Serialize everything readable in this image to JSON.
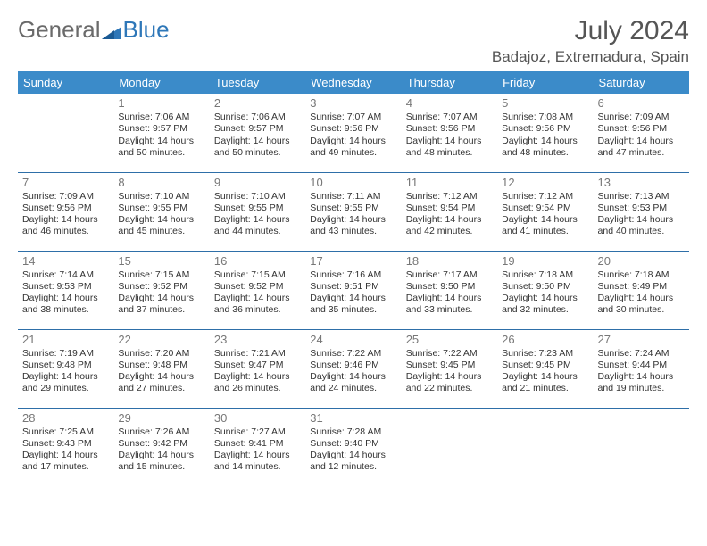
{
  "logo": {
    "part1": "General",
    "part2": "Blue"
  },
  "title": "July 2024",
  "location": "Badajoz, Extremadura, Spain",
  "colors": {
    "header_bg": "#3b8bc9",
    "header_text": "#ffffff",
    "row_border": "#2e6fa8",
    "logo_gray": "#6a6a6a",
    "logo_blue": "#2e77b8"
  },
  "weekdays": [
    "Sunday",
    "Monday",
    "Tuesday",
    "Wednesday",
    "Thursday",
    "Friday",
    "Saturday"
  ],
  "weeks": [
    [
      null,
      {
        "n": "1",
        "sr": "Sunrise: 7:06 AM",
        "ss": "Sunset: 9:57 PM",
        "d1": "Daylight: 14 hours",
        "d2": "and 50 minutes."
      },
      {
        "n": "2",
        "sr": "Sunrise: 7:06 AM",
        "ss": "Sunset: 9:57 PM",
        "d1": "Daylight: 14 hours",
        "d2": "and 50 minutes."
      },
      {
        "n": "3",
        "sr": "Sunrise: 7:07 AM",
        "ss": "Sunset: 9:56 PM",
        "d1": "Daylight: 14 hours",
        "d2": "and 49 minutes."
      },
      {
        "n": "4",
        "sr": "Sunrise: 7:07 AM",
        "ss": "Sunset: 9:56 PM",
        "d1": "Daylight: 14 hours",
        "d2": "and 48 minutes."
      },
      {
        "n": "5",
        "sr": "Sunrise: 7:08 AM",
        "ss": "Sunset: 9:56 PM",
        "d1": "Daylight: 14 hours",
        "d2": "and 48 minutes."
      },
      {
        "n": "6",
        "sr": "Sunrise: 7:09 AM",
        "ss": "Sunset: 9:56 PM",
        "d1": "Daylight: 14 hours",
        "d2": "and 47 minutes."
      }
    ],
    [
      {
        "n": "7",
        "sr": "Sunrise: 7:09 AM",
        "ss": "Sunset: 9:56 PM",
        "d1": "Daylight: 14 hours",
        "d2": "and 46 minutes."
      },
      {
        "n": "8",
        "sr": "Sunrise: 7:10 AM",
        "ss": "Sunset: 9:55 PM",
        "d1": "Daylight: 14 hours",
        "d2": "and 45 minutes."
      },
      {
        "n": "9",
        "sr": "Sunrise: 7:10 AM",
        "ss": "Sunset: 9:55 PM",
        "d1": "Daylight: 14 hours",
        "d2": "and 44 minutes."
      },
      {
        "n": "10",
        "sr": "Sunrise: 7:11 AM",
        "ss": "Sunset: 9:55 PM",
        "d1": "Daylight: 14 hours",
        "d2": "and 43 minutes."
      },
      {
        "n": "11",
        "sr": "Sunrise: 7:12 AM",
        "ss": "Sunset: 9:54 PM",
        "d1": "Daylight: 14 hours",
        "d2": "and 42 minutes."
      },
      {
        "n": "12",
        "sr": "Sunrise: 7:12 AM",
        "ss": "Sunset: 9:54 PM",
        "d1": "Daylight: 14 hours",
        "d2": "and 41 minutes."
      },
      {
        "n": "13",
        "sr": "Sunrise: 7:13 AM",
        "ss": "Sunset: 9:53 PM",
        "d1": "Daylight: 14 hours",
        "d2": "and 40 minutes."
      }
    ],
    [
      {
        "n": "14",
        "sr": "Sunrise: 7:14 AM",
        "ss": "Sunset: 9:53 PM",
        "d1": "Daylight: 14 hours",
        "d2": "and 38 minutes."
      },
      {
        "n": "15",
        "sr": "Sunrise: 7:15 AM",
        "ss": "Sunset: 9:52 PM",
        "d1": "Daylight: 14 hours",
        "d2": "and 37 minutes."
      },
      {
        "n": "16",
        "sr": "Sunrise: 7:15 AM",
        "ss": "Sunset: 9:52 PM",
        "d1": "Daylight: 14 hours",
        "d2": "and 36 minutes."
      },
      {
        "n": "17",
        "sr": "Sunrise: 7:16 AM",
        "ss": "Sunset: 9:51 PM",
        "d1": "Daylight: 14 hours",
        "d2": "and 35 minutes."
      },
      {
        "n": "18",
        "sr": "Sunrise: 7:17 AM",
        "ss": "Sunset: 9:50 PM",
        "d1": "Daylight: 14 hours",
        "d2": "and 33 minutes."
      },
      {
        "n": "19",
        "sr": "Sunrise: 7:18 AM",
        "ss": "Sunset: 9:50 PM",
        "d1": "Daylight: 14 hours",
        "d2": "and 32 minutes."
      },
      {
        "n": "20",
        "sr": "Sunrise: 7:18 AM",
        "ss": "Sunset: 9:49 PM",
        "d1": "Daylight: 14 hours",
        "d2": "and 30 minutes."
      }
    ],
    [
      {
        "n": "21",
        "sr": "Sunrise: 7:19 AM",
        "ss": "Sunset: 9:48 PM",
        "d1": "Daylight: 14 hours",
        "d2": "and 29 minutes."
      },
      {
        "n": "22",
        "sr": "Sunrise: 7:20 AM",
        "ss": "Sunset: 9:48 PM",
        "d1": "Daylight: 14 hours",
        "d2": "and 27 minutes."
      },
      {
        "n": "23",
        "sr": "Sunrise: 7:21 AM",
        "ss": "Sunset: 9:47 PM",
        "d1": "Daylight: 14 hours",
        "d2": "and 26 minutes."
      },
      {
        "n": "24",
        "sr": "Sunrise: 7:22 AM",
        "ss": "Sunset: 9:46 PM",
        "d1": "Daylight: 14 hours",
        "d2": "and 24 minutes."
      },
      {
        "n": "25",
        "sr": "Sunrise: 7:22 AM",
        "ss": "Sunset: 9:45 PM",
        "d1": "Daylight: 14 hours",
        "d2": "and 22 minutes."
      },
      {
        "n": "26",
        "sr": "Sunrise: 7:23 AM",
        "ss": "Sunset: 9:45 PM",
        "d1": "Daylight: 14 hours",
        "d2": "and 21 minutes."
      },
      {
        "n": "27",
        "sr": "Sunrise: 7:24 AM",
        "ss": "Sunset: 9:44 PM",
        "d1": "Daylight: 14 hours",
        "d2": "and 19 minutes."
      }
    ],
    [
      {
        "n": "28",
        "sr": "Sunrise: 7:25 AM",
        "ss": "Sunset: 9:43 PM",
        "d1": "Daylight: 14 hours",
        "d2": "and 17 minutes."
      },
      {
        "n": "29",
        "sr": "Sunrise: 7:26 AM",
        "ss": "Sunset: 9:42 PM",
        "d1": "Daylight: 14 hours",
        "d2": "and 15 minutes."
      },
      {
        "n": "30",
        "sr": "Sunrise: 7:27 AM",
        "ss": "Sunset: 9:41 PM",
        "d1": "Daylight: 14 hours",
        "d2": "and 14 minutes."
      },
      {
        "n": "31",
        "sr": "Sunrise: 7:28 AM",
        "ss": "Sunset: 9:40 PM",
        "d1": "Daylight: 14 hours",
        "d2": "and 12 minutes."
      },
      null,
      null,
      null
    ]
  ]
}
